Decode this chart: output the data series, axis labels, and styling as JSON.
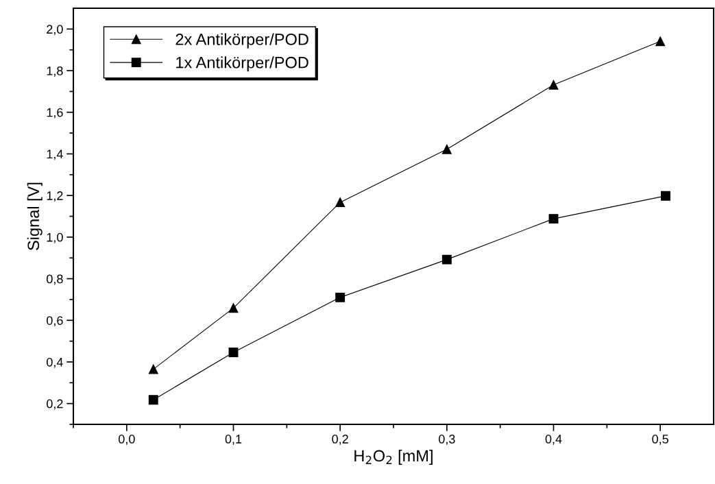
{
  "chart_data": {
    "type": "line",
    "xlabel": "H$_{2}$O$_{2}$ [mM]",
    "ylabel": "Signal [V]",
    "series": [
      {
        "name": "2x Antikörper/POD",
        "color": "#000000",
        "marker": "triangle",
        "x": [
          0.025,
          0.1,
          0.2,
          0.3,
          0.4,
          0.5
        ],
        "values": [
          0.365,
          0.659,
          1.167,
          1.422,
          1.732,
          1.941
        ]
      },
      {
        "name": "1x Antikörper/POD",
        "color": "#000000",
        "marker": "square",
        "x": [
          0.025,
          0.1,
          0.2,
          0.3,
          0.4,
          0.505
        ],
        "values": [
          0.218,
          0.446,
          0.71,
          0.892,
          1.088,
          1.198
        ]
      }
    ],
    "xlim": [
      -0.05,
      0.55
    ],
    "ylim": [
      0.1,
      2.1
    ],
    "xticks": [
      {
        "value": -0.05,
        "label": null
      },
      {
        "value": 0.0,
        "label": "0,0"
      },
      {
        "value": 0.05,
        "label": null
      },
      {
        "value": 0.1,
        "label": "0,1"
      },
      {
        "value": 0.15,
        "label": null
      },
      {
        "value": 0.2,
        "label": "0,2"
      },
      {
        "value": 0.25,
        "label": null
      },
      {
        "value": 0.3,
        "label": "0,3"
      },
      {
        "value": 0.35,
        "label": null
      },
      {
        "value": 0.4,
        "label": "0,4"
      },
      {
        "value": 0.45,
        "label": null
      },
      {
        "value": 0.5,
        "label": "0,5"
      }
    ],
    "yticks": [
      {
        "value": 0.1,
        "label": null
      },
      {
        "value": 0.2,
        "label": "0,2"
      },
      {
        "value": 0.3,
        "label": null
      },
      {
        "value": 0.4,
        "label": "0,4"
      },
      {
        "value": 0.5,
        "label": null
      },
      {
        "value": 0.6,
        "label": "0,6"
      },
      {
        "value": 0.7,
        "label": null
      },
      {
        "value": 0.8,
        "label": "0,8"
      },
      {
        "value": 0.9,
        "label": null
      },
      {
        "value": 1.0,
        "label": "1,0"
      },
      {
        "value": 1.1,
        "label": null
      },
      {
        "value": 1.2,
        "label": "1,2"
      },
      {
        "value": 1.3,
        "label": null
      },
      {
        "value": 1.4,
        "label": "1,4"
      },
      {
        "value": 1.5,
        "label": null
      },
      {
        "value": 1.6,
        "label": "1,6"
      },
      {
        "value": 1.7,
        "label": null
      },
      {
        "value": 1.8,
        "label": "1,8"
      },
      {
        "value": 1.9,
        "label": null
      },
      {
        "value": 2.0,
        "label": "2,0"
      }
    ],
    "line_style": "solid",
    "grid": false,
    "legend": "top left"
  }
}
